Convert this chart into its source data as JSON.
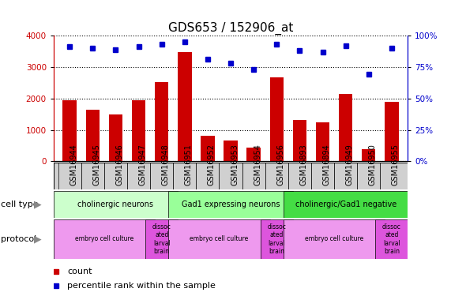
{
  "title": "GDS653 / 152906_at",
  "samples": [
    "GSM16944",
    "GSM16945",
    "GSM16946",
    "GSM16947",
    "GSM16948",
    "GSM16951",
    "GSM16952",
    "GSM16953",
    "GSM16954",
    "GSM16956",
    "GSM16893",
    "GSM16894",
    "GSM16949",
    "GSM16950",
    "GSM16955"
  ],
  "counts": [
    1950,
    1650,
    1480,
    1950,
    2520,
    3480,
    820,
    650,
    430,
    2670,
    1310,
    1250,
    2150,
    390,
    1880
  ],
  "percentiles": [
    91,
    90,
    89,
    91,
    93,
    95,
    81,
    78,
    73,
    93,
    88,
    87,
    92,
    69,
    90
  ],
  "bar_color": "#cc0000",
  "dot_color": "#0000cc",
  "ylim_left": [
    0,
    4000
  ],
  "ylim_right": [
    0,
    100
  ],
  "yticks_left": [
    0,
    1000,
    2000,
    3000,
    4000
  ],
  "yticks_right": [
    0,
    25,
    50,
    75,
    100
  ],
  "cell_type_groups": [
    {
      "label": "cholinergic neurons",
      "start": 0,
      "end": 5,
      "color": "#ccffcc"
    },
    {
      "label": "Gad1 expressing neurons",
      "start": 5,
      "end": 10,
      "color": "#99ff99"
    },
    {
      "label": "cholinergic/Gad1 negative",
      "start": 10,
      "end": 15,
      "color": "#44dd44"
    }
  ],
  "protocol_groups": [
    {
      "label": "embryo cell culture",
      "start": 0,
      "end": 4,
      "color": "#ee99ee"
    },
    {
      "label": "dissoc\nated\nlarval\nbrain",
      "start": 4,
      "end": 5,
      "color": "#dd55dd"
    },
    {
      "label": "embryo cell culture",
      "start": 5,
      "end": 9,
      "color": "#ee99ee"
    },
    {
      "label": "dissoc\nated\nlarval\nbrain",
      "start": 9,
      "end": 10,
      "color": "#dd55dd"
    },
    {
      "label": "embryo cell culture",
      "start": 10,
      "end": 14,
      "color": "#ee99ee"
    },
    {
      "label": "dissoc\nated\nlarval\nbrain",
      "start": 14,
      "end": 15,
      "color": "#dd55dd"
    }
  ],
  "sample_bg_color": "#d0d0d0",
  "background_color": "#ffffff",
  "title_fontsize": 11,
  "tick_fontsize": 7.5,
  "label_fontsize": 8,
  "row_label_fontsize": 8,
  "legend_fontsize": 8
}
